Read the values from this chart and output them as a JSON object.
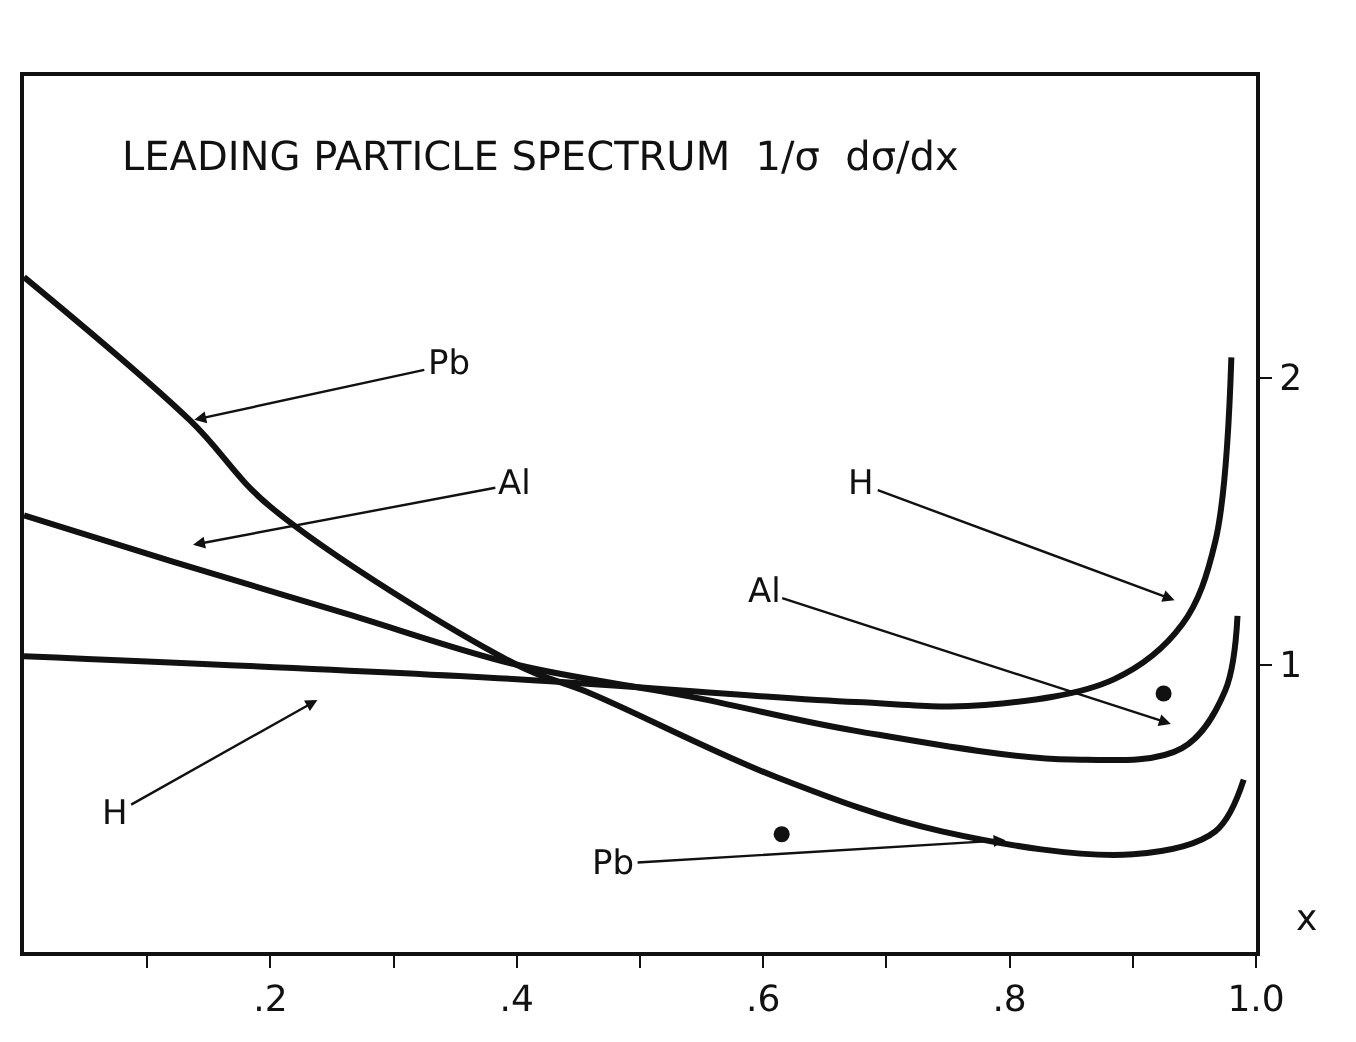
{
  "chart_data": {
    "type": "line",
    "title": "LEADING PARTICLE SPECTRUM  1/σ  dσ/dx",
    "xlabel": "x",
    "xlim": [
      0,
      1.0
    ],
    "ylim": [
      0,
      3.05
    ],
    "xticks": [
      {
        "value": 0.1,
        "label": null
      },
      {
        "value": 0.2,
        "label": ".2"
      },
      {
        "value": 0.3,
        "label": null
      },
      {
        "value": 0.4,
        "label": ".4"
      },
      {
        "value": 0.5,
        "label": null
      },
      {
        "value": 0.6,
        "label": ".6"
      },
      {
        "value": 0.7,
        "label": null
      },
      {
        "value": 0.8,
        "label": ".8"
      },
      {
        "value": 0.9,
        "label": null
      },
      {
        "value": 1.0,
        "label": "1.0"
      }
    ],
    "yticks": [
      1,
      2
    ],
    "marker": "none",
    "line_style": "solid",
    "series": [
      {
        "color": "#111111",
        "x": [
          0,
          0.135,
          0.2,
          0.4,
          0.46,
          0.61,
          0.745,
          0.9,
          0.967,
          0.99
        ],
        "values": [
          2.35,
          1.85,
          1.55,
          1.0,
          0.9,
          0.61,
          0.42,
          0.34,
          0.42,
          0.6
        ]
      },
      {
        "color": "#111111",
        "x": [
          0,
          0.12,
          0.26,
          0.4,
          0.54,
          0.675,
          0.85,
          0.94,
          0.975,
          0.985
        ],
        "values": [
          1.52,
          1.36,
          1.18,
          1.0,
          0.89,
          0.77,
          0.67,
          0.71,
          0.91,
          1.17
        ]
      },
      {
        "color": "#111111",
        "x": [
          0,
          0.4,
          0.675,
          0.78,
          0.885,
          0.94,
          0.967,
          0.98
        ],
        "values": [
          1.03,
          0.95,
          0.87,
          0.86,
          0.95,
          1.14,
          1.43,
          2.07
        ]
      },
      {
        "type": "scatter",
        "marker": "circle",
        "color": "#111111",
        "x": [
          0.925,
          0.615
        ],
        "values": [
          0.9,
          0.41
        ]
      }
    ],
    "annotations": [
      {
        "text": "Pb",
        "x": 0.135,
        "y": 1.85
      },
      "Al",
      "H",
      "H",
      "Al",
      {
        "text": "Pb",
        "x": 0.8,
        "y": 0.39
      }
    ]
  }
}
